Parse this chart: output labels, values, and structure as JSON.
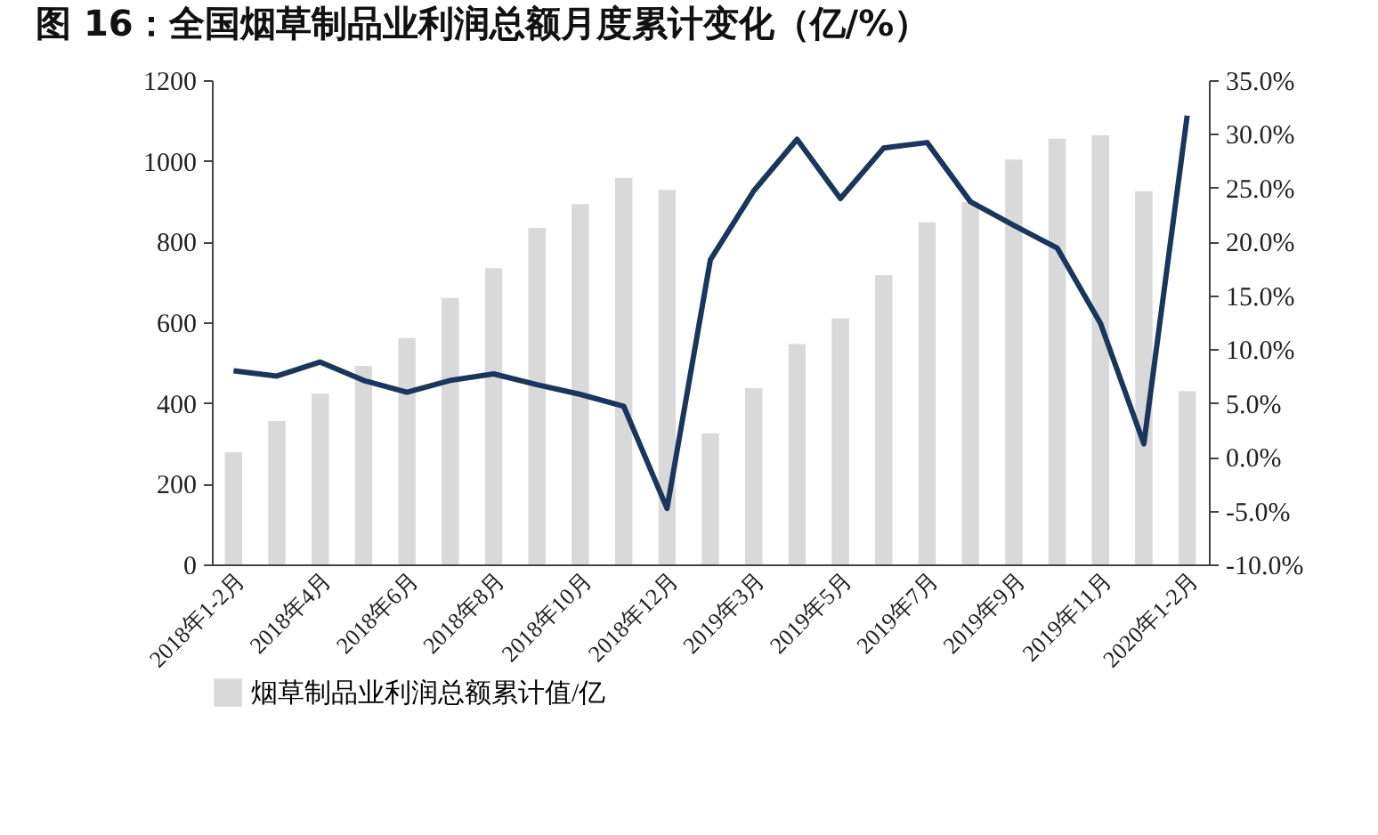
{
  "chart_data": {
    "type": "bar",
    "title": "图 16：全国烟草制品业利润总额月度累计变化（亿/%）",
    "categories": [
      "2018年1-2月",
      null,
      "2018年4月",
      null,
      "2018年6月",
      null,
      "2018年8月",
      null,
      "2018年10月",
      null,
      "2018年12月",
      null,
      "2019年3月",
      null,
      "2019年5月",
      null,
      "2019年7月",
      null,
      "2019年9月",
      null,
      "2019年11月",
      null,
      "2020年1-2月"
    ],
    "series": [
      {
        "name": "烟草制品业利润总额累计值/亿",
        "color": "#d9d9d9",
        "values": [
          278,
          355,
          423,
          492,
          561,
          660,
          734,
          834,
          893,
          958,
          928,
          325,
          437,
          546,
          610,
          717,
          848,
          898,
          1003,
          1055,
          1063,
          925,
          429
        ]
      },
      {
        "type": "line",
        "axis": "y2",
        "color": "#1b365d",
        "values": [
          8.0,
          7.5,
          8.8,
          7.1,
          6.0,
          7.1,
          7.7,
          6.7,
          5.8,
          4.7,
          -4.8,
          18.3,
          24.7,
          29.5,
          24.0,
          28.7,
          29.2,
          23.7,
          21.5,
          19.4,
          12.4,
          1.2,
          31.7
        ]
      }
    ],
    "ylim": [
      0,
      1200
    ],
    "yticks": [
      0,
      200,
      400,
      600,
      800,
      1000,
      1200
    ],
    "y2lim": [
      -10,
      35
    ],
    "y2ticks": [
      {
        "value": -10,
        "label": "-10.0%"
      },
      {
        "value": -5,
        "label": "-5.0%"
      },
      {
        "value": 0,
        "label": "0.0%"
      },
      {
        "value": 5,
        "label": "5.0%"
      },
      {
        "value": 10,
        "label": "10.0%"
      },
      {
        "value": 15,
        "label": "15.0%"
      },
      {
        "value": 20,
        "label": "20.0%"
      },
      {
        "value": 25,
        "label": "25.0%"
      },
      {
        "value": 30,
        "label": "30.0%"
      },
      {
        "value": 35,
        "label": "35.0%"
      }
    ],
    "legend": "bottom"
  }
}
